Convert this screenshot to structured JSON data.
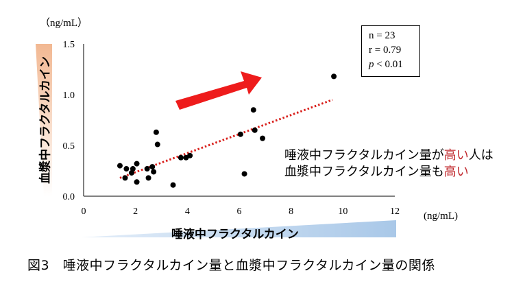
{
  "chart_data": {
    "type": "scatter",
    "title": "",
    "xlabel": "唾液中フラクタルカイン",
    "ylabel": "血漿中フラクタルカイン",
    "x_unit": "(ng/mL)",
    "y_unit": "（ng/mL）",
    "xlim": [
      0,
      12
    ],
    "ylim": [
      0,
      1.5
    ],
    "x_ticks": [
      "0",
      "2",
      "4",
      "6",
      "8",
      "10",
      "12"
    ],
    "y_ticks": [
      "0.0",
      "0.5",
      "1.0",
      "1.5"
    ],
    "grid": false,
    "points": [
      {
        "x": 1.4,
        "y": 0.3
      },
      {
        "x": 1.6,
        "y": 0.18
      },
      {
        "x": 1.65,
        "y": 0.27
      },
      {
        "x": 1.85,
        "y": 0.23
      },
      {
        "x": 1.9,
        "y": 0.27
      },
      {
        "x": 2.05,
        "y": 0.32
      },
      {
        "x": 2.05,
        "y": 0.14
      },
      {
        "x": 2.45,
        "y": 0.27
      },
      {
        "x": 2.5,
        "y": 0.18
      },
      {
        "x": 2.65,
        "y": 0.29
      },
      {
        "x": 2.7,
        "y": 0.24
      },
      {
        "x": 2.8,
        "y": 0.63
      },
      {
        "x": 2.85,
        "y": 0.51
      },
      {
        "x": 3.45,
        "y": 0.11
      },
      {
        "x": 3.75,
        "y": 0.38
      },
      {
        "x": 3.95,
        "y": 0.38
      },
      {
        "x": 4.1,
        "y": 0.4
      },
      {
        "x": 6.05,
        "y": 0.61
      },
      {
        "x": 6.2,
        "y": 0.22
      },
      {
        "x": 6.55,
        "y": 0.85
      },
      {
        "x": 6.6,
        "y": 0.65
      },
      {
        "x": 6.9,
        "y": 0.57
      },
      {
        "x": 9.65,
        "y": 1.18
      }
    ],
    "trendline": {
      "x": [
        1.4,
        9.6
      ],
      "y": [
        0.18,
        0.95
      ]
    },
    "stats": {
      "n": "n = 23",
      "r": "r = 0.79",
      "p_symbol": "p",
      "p_rest": " < 0.01"
    },
    "annotation": {
      "line1_a": "唾液中フラクタルカイン量が",
      "line1_b": "高い",
      "line1_c": "人は",
      "line2_a": "血漿中フラクタルカイン量も",
      "line2_b": "高い"
    }
  },
  "caption": "図3　唾液中フラクタルカイン量と血漿中フラクタルカイン量の関係",
  "colors": {
    "points": "#000000",
    "trendline": "#d9201c",
    "arrow": "#ee1c1c",
    "highlight_text": "#c0282d",
    "y_band": "#f2b892",
    "x_band": "#a9c8e8"
  }
}
